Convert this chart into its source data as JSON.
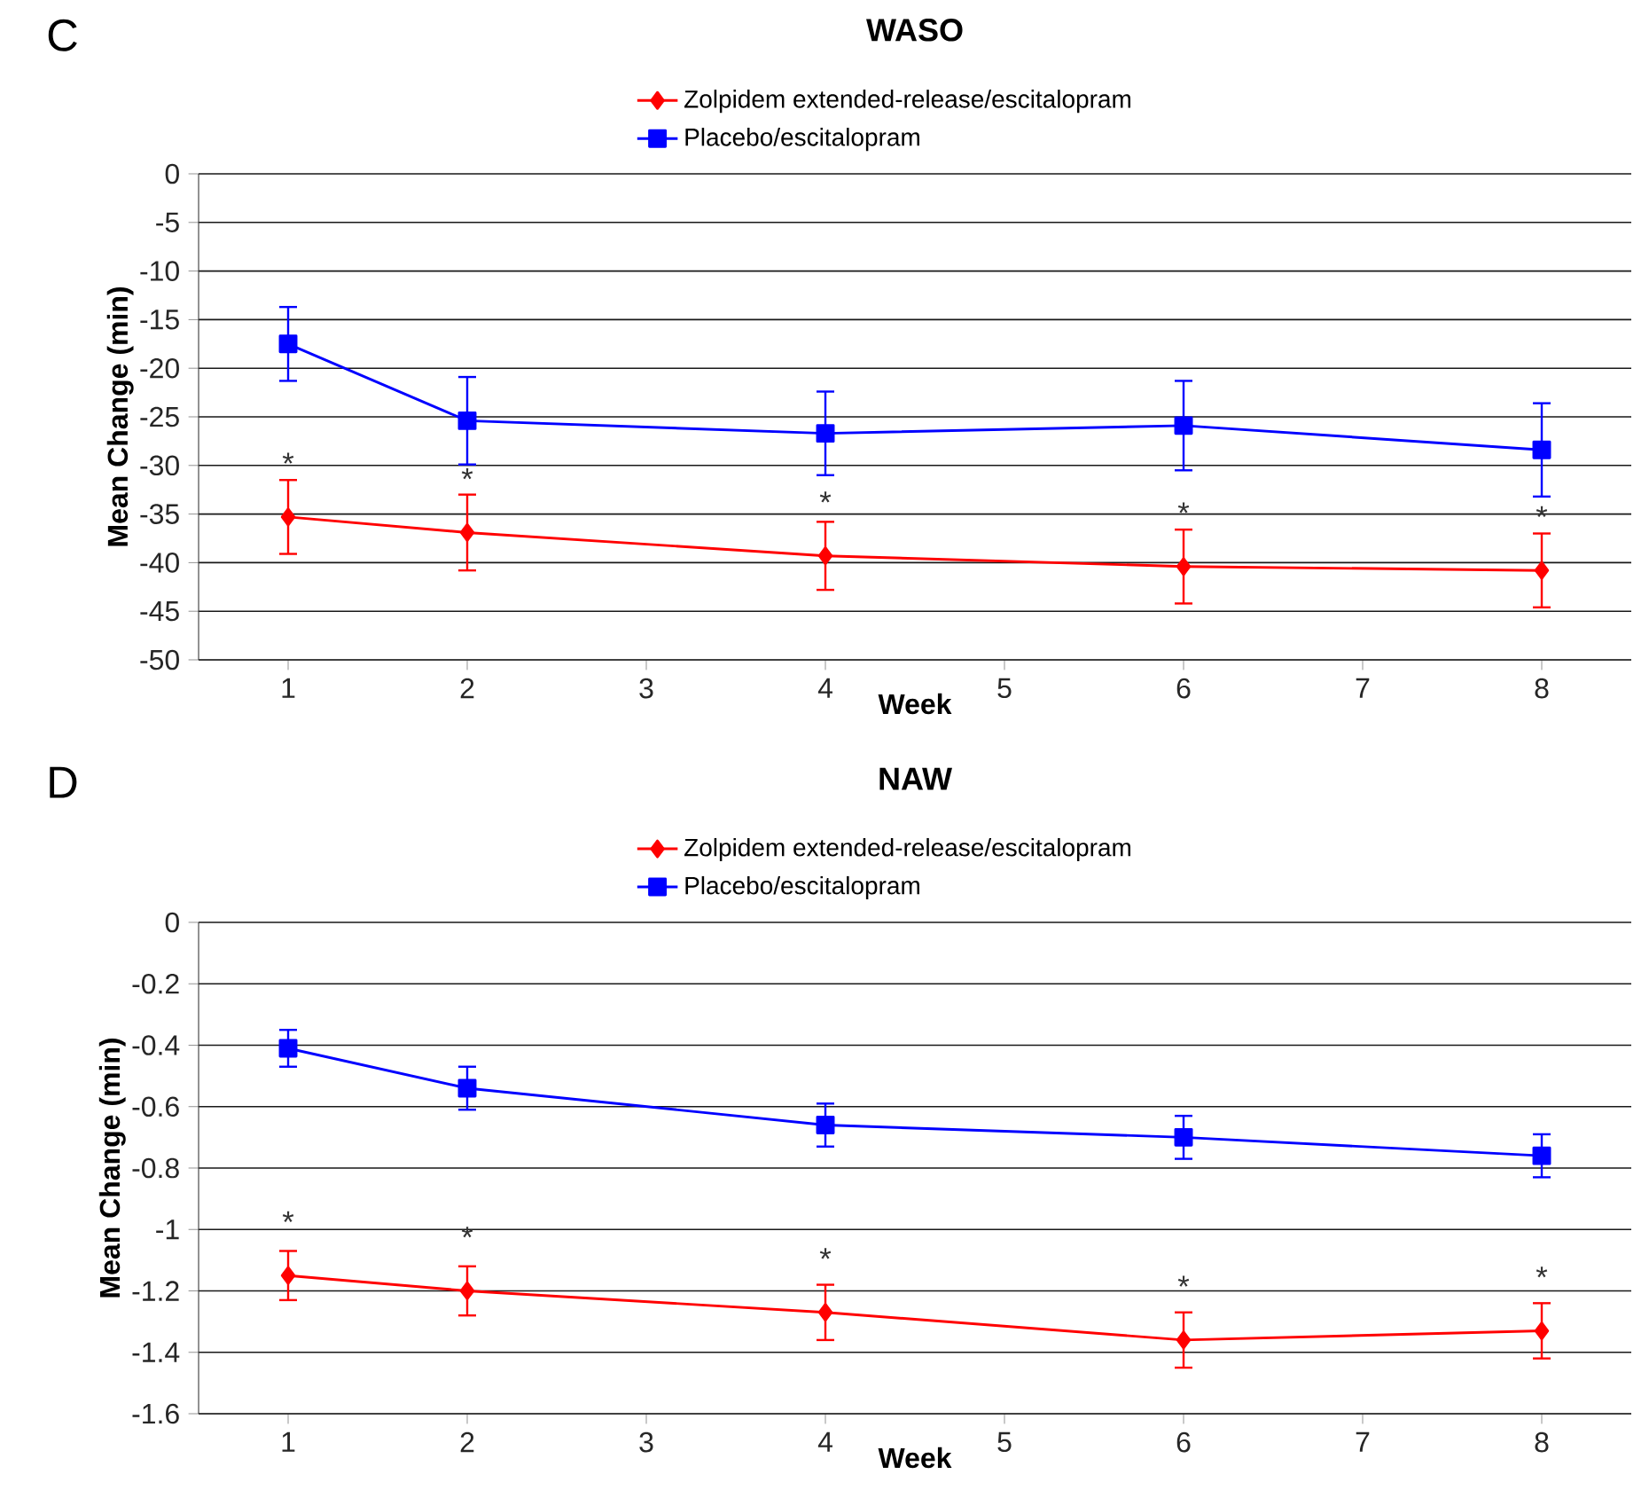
{
  "chart_data": [
    {
      "type": "line",
      "title": "WASO",
      "xlabel": "Week",
      "ylabel": "Mean Change (min)",
      "x": [
        1,
        2,
        4,
        6,
        8
      ],
      "xlim": [
        0.5,
        8.5
      ],
      "xticks": [
        1,
        2,
        3,
        4,
        5,
        6,
        7,
        8
      ],
      "ylim": [
        -50,
        0
      ],
      "yticks": [
        -50,
        -45,
        -40,
        -35,
        -30,
        -25,
        -20,
        -15,
        -10,
        -5,
        0
      ],
      "grid": "y",
      "legend": "top",
      "series": [
        {
          "name": "Zolpidem extended-release/escitalopram",
          "color": "#ff0000",
          "marker": "diamond",
          "values": [
            -35.3,
            -36.9,
            -39.3,
            -40.4,
            -40.8
          ],
          "errors": [
            3.8,
            3.9,
            3.5,
            3.8,
            3.8
          ]
        },
        {
          "name": "Placebo/escitalopram",
          "color": "#0000ff",
          "marker": "square",
          "values": [
            -17.5,
            -25.4,
            -26.7,
            -25.9,
            -28.4
          ],
          "errors": [
            3.8,
            4.5,
            4.3,
            4.6,
            4.8
          ]
        }
      ],
      "annotations": [
        "C",
        {
          "text": "*",
          "x": 1,
          "y": -35.3
        },
        {
          "text": "*",
          "x": 2,
          "y": -36.9
        },
        {
          "text": "*",
          "x": 4,
          "y": -39.3
        },
        {
          "text": "*",
          "x": 6,
          "y": -40.4
        },
        {
          "text": "*",
          "x": 8,
          "y": -40.8
        }
      ]
    },
    {
      "type": "line",
      "title": "NAW",
      "xlabel": "Week",
      "ylabel": "Mean Change (min)",
      "x": [
        1,
        2,
        4,
        6,
        8
      ],
      "xlim": [
        0.5,
        8.5
      ],
      "xticks": [
        1,
        2,
        3,
        4,
        5,
        6,
        7,
        8
      ],
      "ylim": [
        -1.6,
        0
      ],
      "yticks": [
        -1.6,
        -1.4,
        -1.2,
        -1,
        -0.8,
        -0.6,
        -0.4,
        -0.2,
        0
      ],
      "grid": "y",
      "legend": "top",
      "series": [
        {
          "name": "Zolpidem extended-release/escitalopram",
          "color": "#ff0000",
          "marker": "diamond",
          "values": [
            -1.15,
            -1.2,
            -1.27,
            -1.36,
            -1.33
          ],
          "errors": [
            0.08,
            0.08,
            0.09,
            0.09,
            0.09
          ]
        },
        {
          "name": "Placebo/escitalopram",
          "color": "#0000ff",
          "marker": "square",
          "values": [
            -0.41,
            -0.54,
            -0.66,
            -0.7,
            -0.76
          ],
          "errors": [
            0.06,
            0.07,
            0.07,
            0.07,
            0.07
          ]
        }
      ],
      "annotations": [
        "D",
        {
          "text": "*",
          "x": 1,
          "y": -1.15
        },
        {
          "text": "*",
          "x": 2,
          "y": -1.2
        },
        {
          "text": "*",
          "x": 4,
          "y": -1.27
        },
        {
          "text": "*",
          "x": 6,
          "y": -1.36
        },
        {
          "text": "*",
          "x": 8,
          "y": -1.33
        }
      ]
    }
  ]
}
